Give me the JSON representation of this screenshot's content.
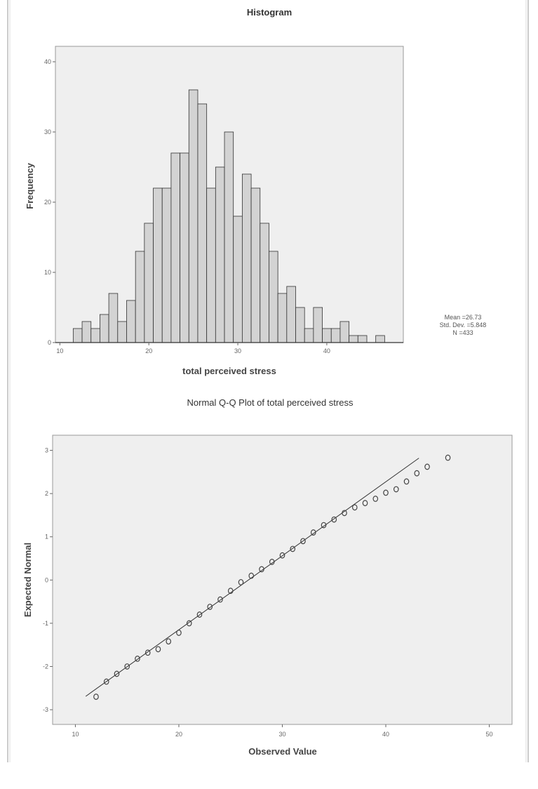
{
  "chart_data": [
    {
      "type": "bar",
      "title": "Histogram",
      "xlabel": "total perceived stress",
      "ylabel": "Frequency",
      "xlim": [
        9.5,
        48.6
      ],
      "ylim": [
        0,
        42.2
      ],
      "xticks": [
        10,
        20,
        30,
        40
      ],
      "yticks": [
        0,
        10,
        20,
        30,
        40
      ],
      "bin_width": 1,
      "x": [
        12,
        13,
        14,
        15,
        16,
        17,
        18,
        19,
        20,
        21,
        22,
        23,
        24,
        25,
        26,
        27,
        28,
        29,
        30,
        31,
        32,
        33,
        34,
        35,
        36,
        37,
        38,
        39,
        40,
        41,
        42,
        43,
        44,
        45,
        46
      ],
      "values": [
        2,
        3,
        2,
        4,
        7,
        3,
        6,
        13,
        17,
        22,
        22,
        27,
        27,
        36,
        34,
        22,
        25,
        30,
        18,
        24,
        22,
        17,
        13,
        7,
        8,
        5,
        2,
        5,
        2,
        2,
        3,
        1,
        1,
        0,
        1
      ],
      "bar_color": "#d3d3d3",
      "background": "#efefef",
      "stats": {
        "mean": "Mean =26.73",
        "sd": "Std. Dev. =5.848",
        "n": "N =433"
      },
      "grid": false
    },
    {
      "type": "scatter",
      "title": "Normal Q-Q Plot of total perceived stress",
      "xlabel": "Observed Value",
      "ylabel": "Expected Normal",
      "xlim": [
        7.8,
        52.2
      ],
      "ylim": [
        -3.34,
        3.35
      ],
      "xticks": [
        10,
        20,
        30,
        40,
        50
      ],
      "yticks": [
        -3,
        -2,
        -1,
        0,
        1,
        2,
        3
      ],
      "x": [
        12,
        13,
        14,
        15,
        16,
        17,
        18,
        19,
        20,
        21,
        22,
        23,
        24,
        25,
        26,
        27,
        28,
        29,
        30,
        31,
        32,
        33,
        34,
        35,
        36,
        37,
        38,
        39,
        40,
        41,
        42,
        43,
        44,
        46
      ],
      "y": [
        -2.7,
        -2.35,
        -2.17,
        -2.0,
        -1.82,
        -1.68,
        -1.6,
        -1.42,
        -1.22,
        -1.0,
        -0.8,
        -0.62,
        -0.45,
        -0.25,
        -0.05,
        0.1,
        0.25,
        0.42,
        0.57,
        0.72,
        0.9,
        1.1,
        1.27,
        1.4,
        1.55,
        1.68,
        1.78,
        1.88,
        2.02,
        2.1,
        2.28,
        2.47,
        2.62,
        2.83
      ],
      "reference_line": {
        "x": [
          11,
          43.2
        ],
        "y": [
          -2.69,
          2.82
        ]
      },
      "background": "#efefef",
      "grid": false
    }
  ]
}
